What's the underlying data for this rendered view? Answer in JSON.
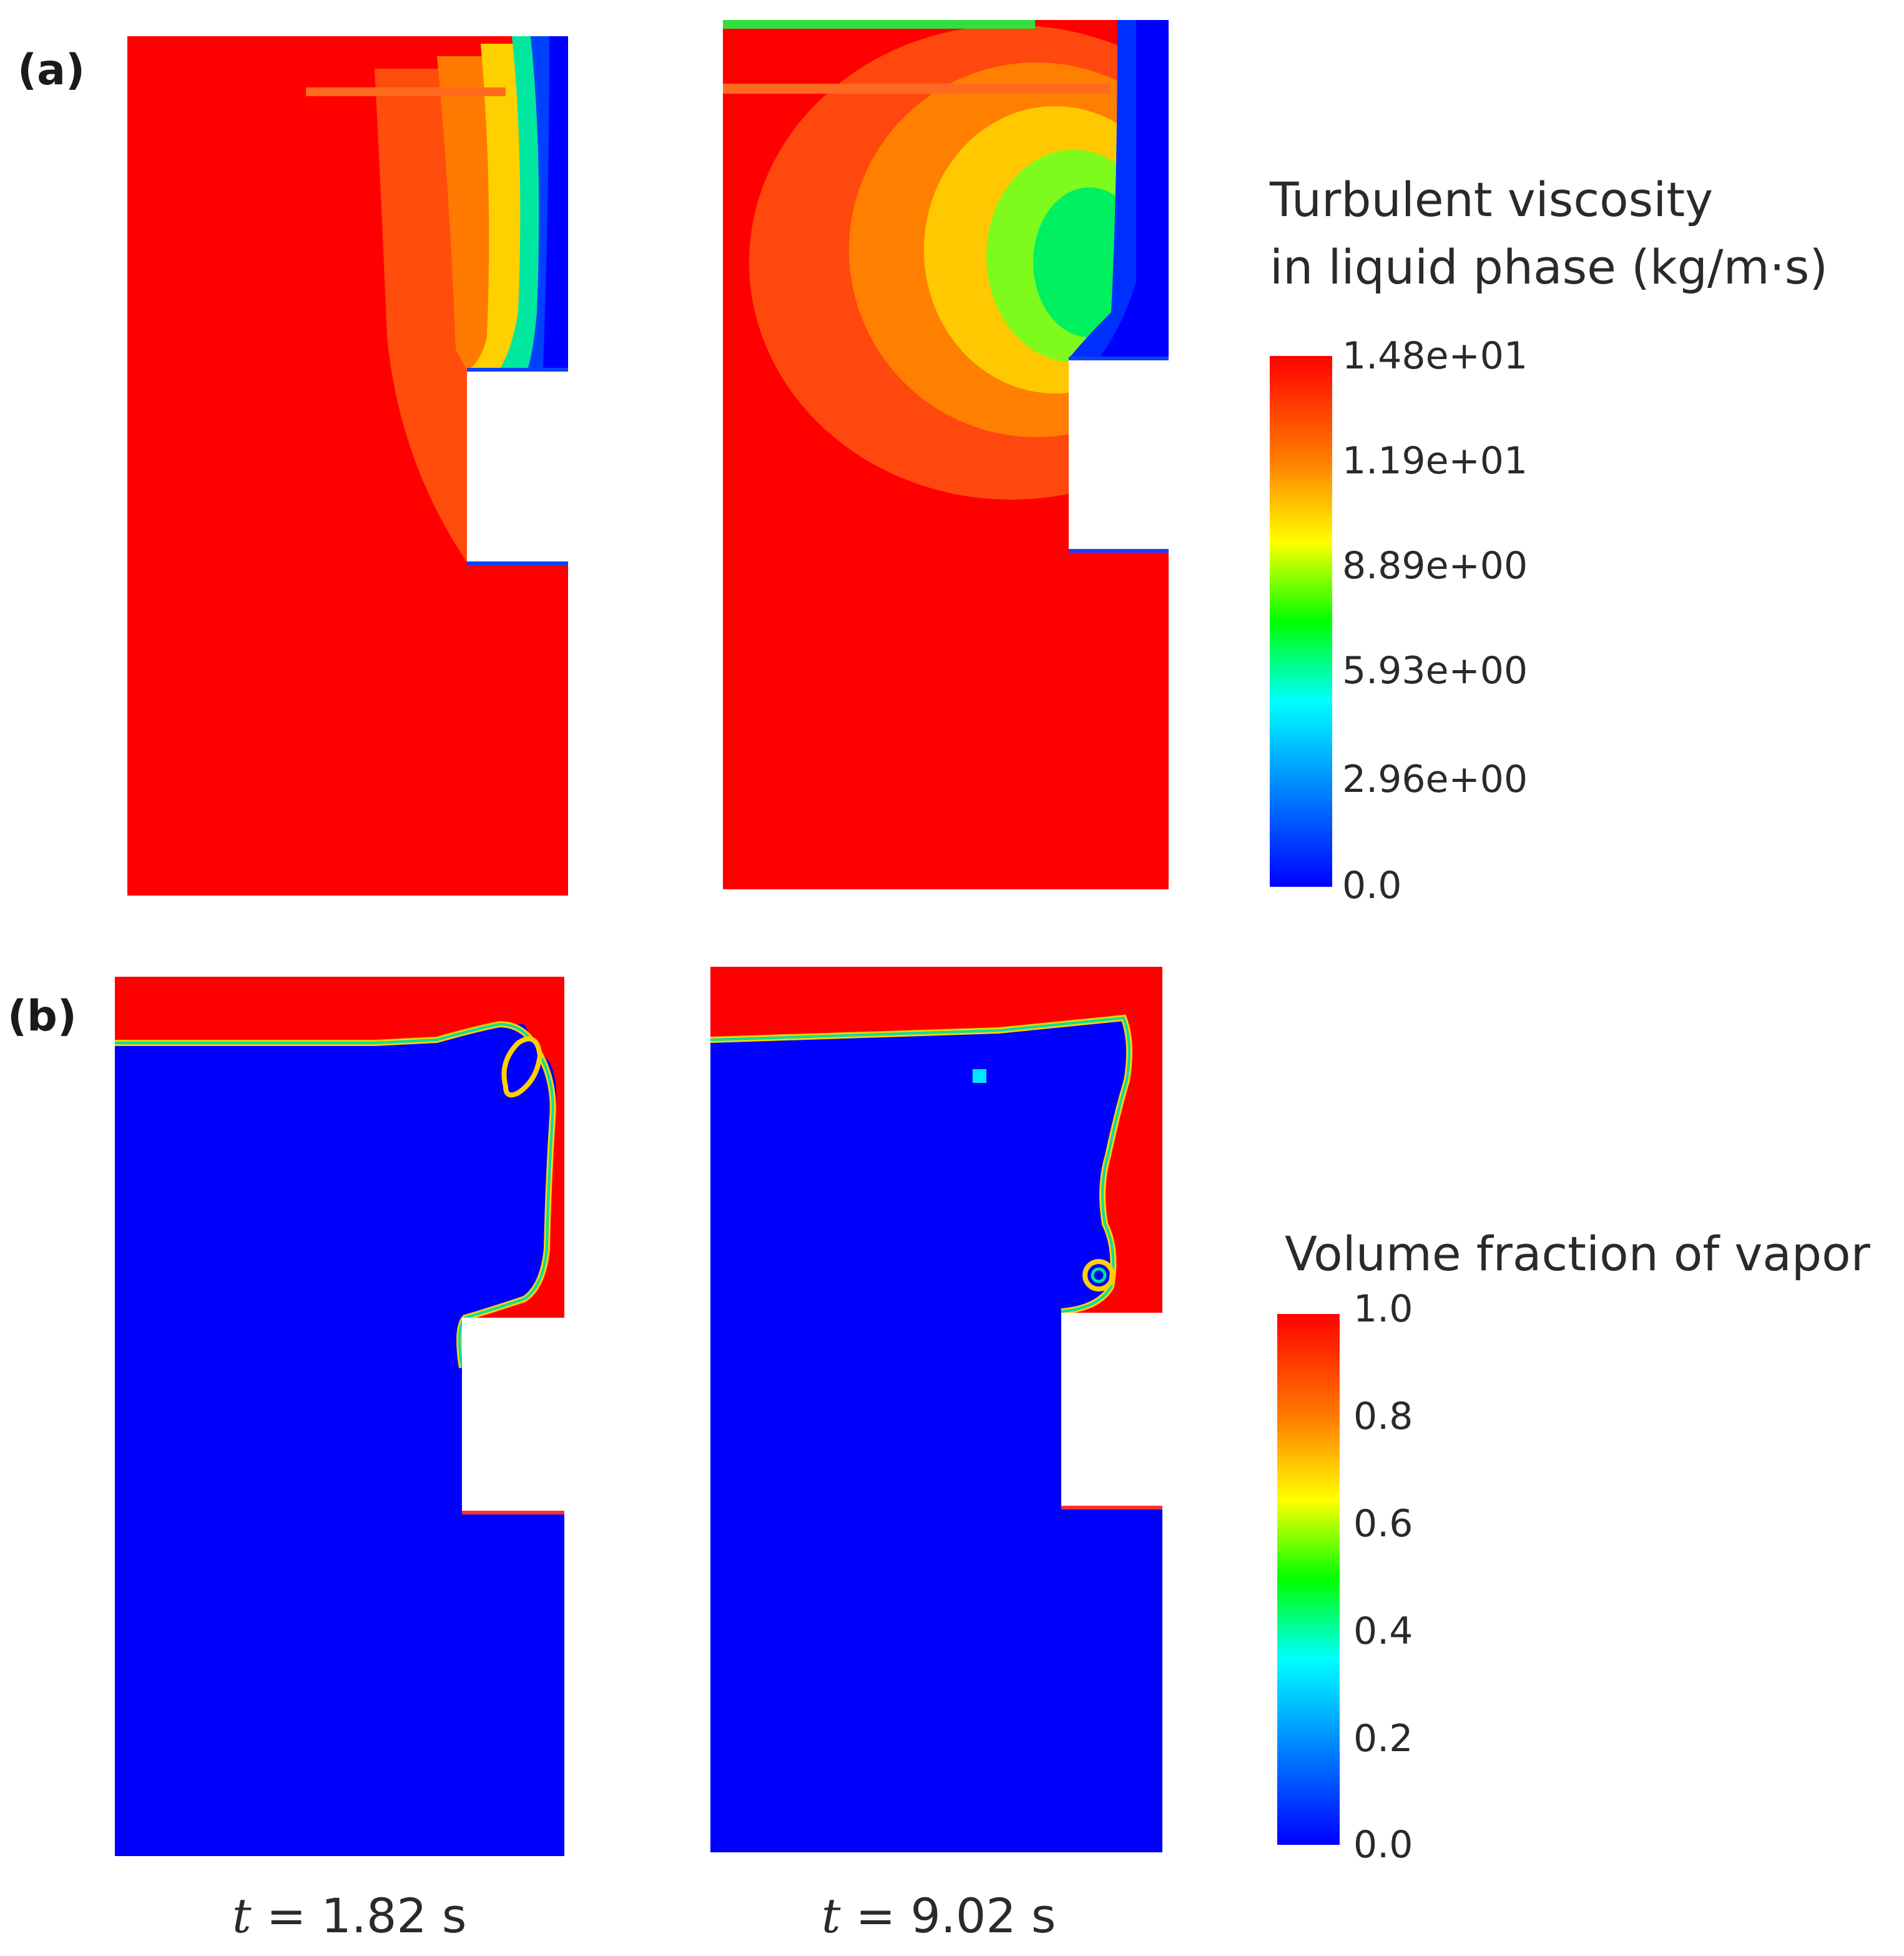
{
  "panels": {
    "a": {
      "label": "(a)",
      "legend": {
        "title_line1": "Turbulent viscosity",
        "title_line2": "in liquid phase (kg/m·s)",
        "ticks": [
          "1.48e+01",
          "1.19e+01",
          "8.89e+00",
          "5.93e+00",
          "2.96e+00",
          "0.0"
        ]
      }
    },
    "b": {
      "label": "(b)",
      "legend": {
        "title": "Volume fraction of vapor",
        "ticks": [
          "1.0",
          "0.8",
          "0.6",
          "0.4",
          "0.2",
          "0.0"
        ]
      }
    }
  },
  "times": {
    "left": {
      "var": "t",
      "value": " = 1.82 s"
    },
    "right": {
      "var": "t",
      "value": " = 9.02 s"
    }
  },
  "colors": {
    "max": "#ff0000",
    "orange": "#ff6a00",
    "yellow": "#ffff00",
    "green": "#00ff00",
    "cyan": "#00ffff",
    "min": "#0000ff",
    "background": "#ffffff"
  }
}
